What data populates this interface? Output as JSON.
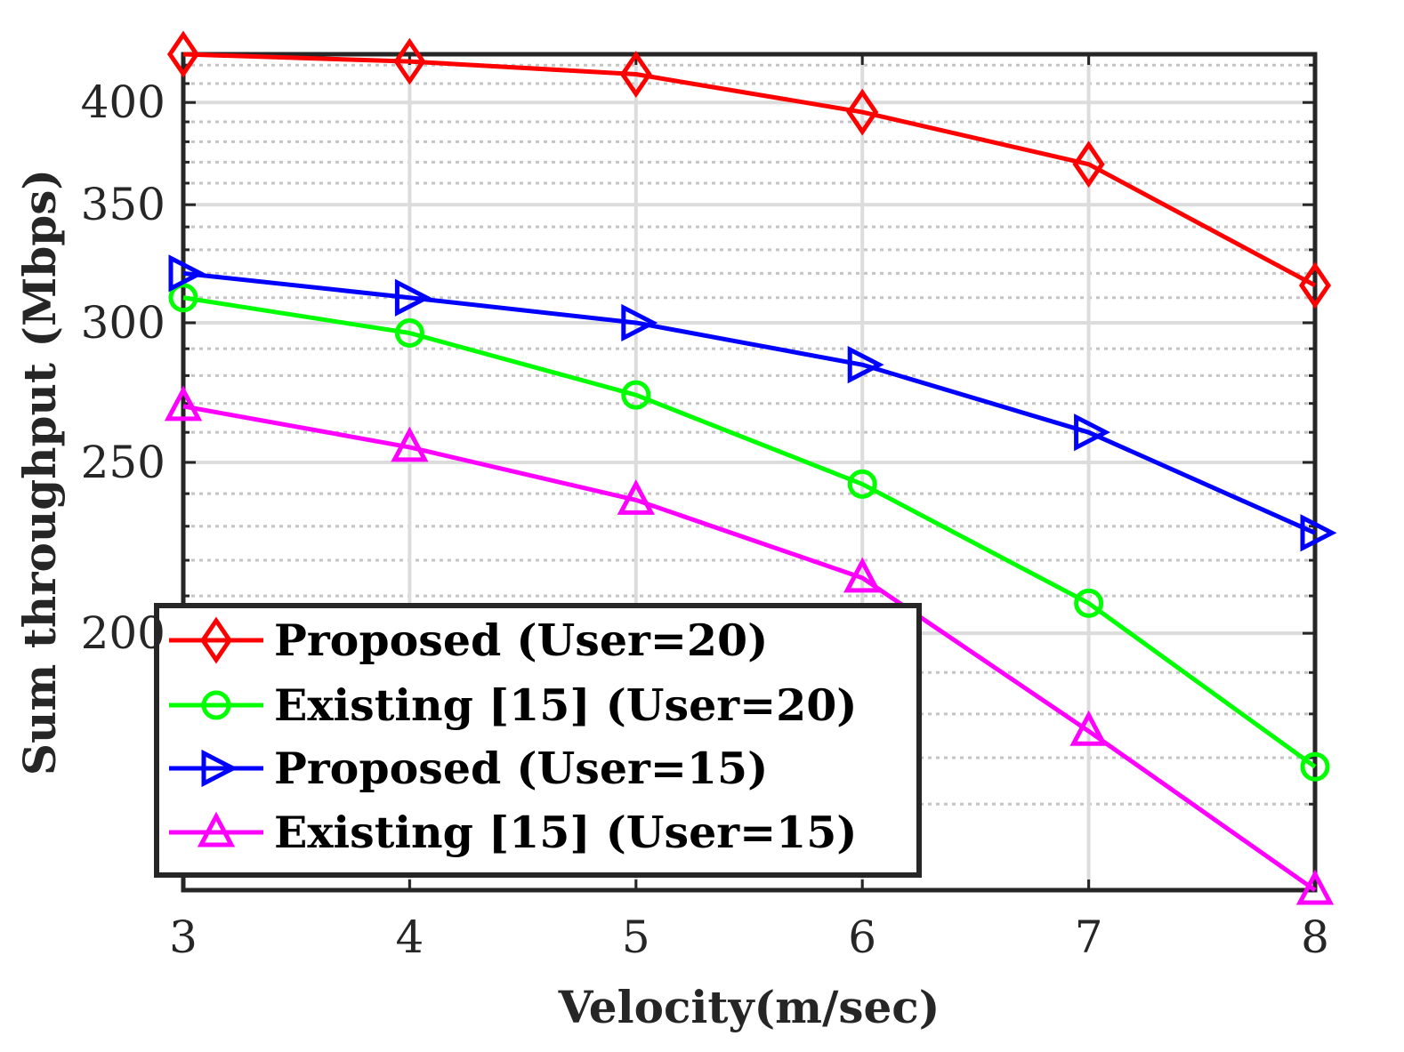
{
  "chart_data": {
    "type": "line",
    "title": "",
    "xlabel": "Velocity(m/sec)",
    "ylabel": "Sum throughput (Mbps)",
    "x": [
      3,
      4,
      5,
      6,
      7,
      8
    ],
    "xticks": [
      "3",
      "4",
      "5",
      "6",
      "7",
      "8"
    ],
    "yticks": [
      "200",
      "250",
      "300",
      "350",
      "400"
    ],
    "xlim": [
      3,
      8
    ],
    "ylim": [
      143,
      426
    ],
    "log_y": true,
    "grid": true,
    "minor_grid": true,
    "legend_location": "lower-left",
    "series": [
      {
        "name": "Proposed (User=20)",
        "color": "#ff0000",
        "marker": "diamond",
        "values": [
          426,
          422,
          415,
          395,
          369,
          315
        ]
      },
      {
        "name": "Existing [15] (User=20)",
        "color": "#00ff00",
        "marker": "circle",
        "values": [
          310,
          296,
          273,
          243,
          208,
          168
        ]
      },
      {
        "name": "Proposed (User=15)",
        "color": "#0000ff",
        "marker": "triangle-right",
        "values": [
          320,
          310,
          300,
          284,
          260,
          228
        ]
      },
      {
        "name": "Existing [15] (User=15)",
        "color": "#ff00ff",
        "marker": "triangle-up",
        "values": [
          269,
          255,
          238,
          215,
          176,
          143
        ]
      }
    ]
  }
}
